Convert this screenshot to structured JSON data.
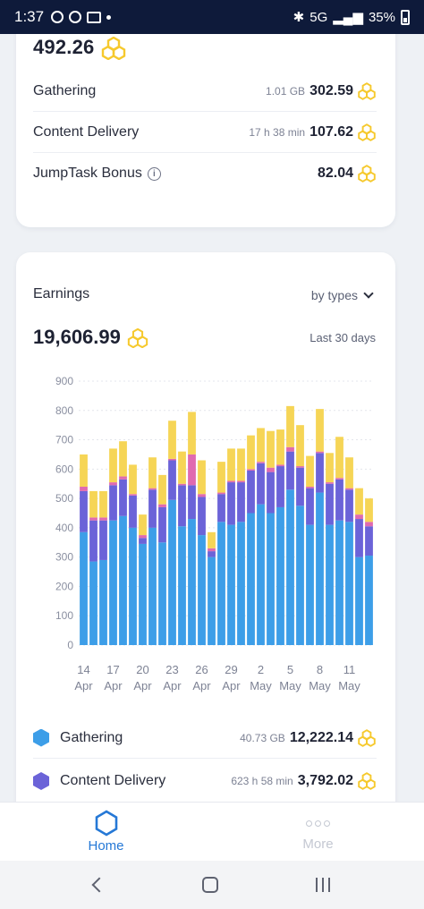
{
  "status_bar": {
    "time": "1:37",
    "network": "5G",
    "battery": "35%"
  },
  "summary": {
    "total": "492.26",
    "rows": [
      {
        "label": "Gathering",
        "meta": "1.01 GB",
        "value": "302.59"
      },
      {
        "label": "Content Delivery",
        "meta": "17 h 38 min",
        "value": "107.62"
      },
      {
        "label": "JumpTask Bonus",
        "meta": "",
        "value": "82.04"
      }
    ]
  },
  "earnings": {
    "title": "Earnings",
    "filter_label": "by types",
    "total": "19,606.99",
    "period": "Last 30 days"
  },
  "chart_data": {
    "type": "bar",
    "stacked": true,
    "ylim": [
      0,
      900
    ],
    "yticks": [
      0,
      100,
      200,
      300,
      400,
      500,
      600,
      700,
      800,
      900
    ],
    "grid": true,
    "categories": [
      "14 Apr",
      "15 Apr",
      "16 Apr",
      "17 Apr",
      "18 Apr",
      "19 Apr",
      "20 Apr",
      "21 Apr",
      "22 Apr",
      "23 Apr",
      "24 Apr",
      "25 Apr",
      "26 Apr",
      "27 Apr",
      "28 Apr",
      "29 Apr",
      "30 Apr",
      "1 May",
      "2 May",
      "3 May",
      "4 May",
      "5 May",
      "6 May",
      "7 May",
      "8 May",
      "9 May",
      "10 May",
      "11 May",
      "12 May",
      "13 May"
    ],
    "xtick_labels": [
      {
        "day": "14",
        "month": "Apr",
        "index": 0
      },
      {
        "day": "17",
        "month": "Apr",
        "index": 3
      },
      {
        "day": "20",
        "month": "Apr",
        "index": 6
      },
      {
        "day": "23",
        "month": "Apr",
        "index": 9
      },
      {
        "day": "26",
        "month": "Apr",
        "index": 12
      },
      {
        "day": "29",
        "month": "Apr",
        "index": 15
      },
      {
        "day": "2",
        "month": "May",
        "index": 18
      },
      {
        "day": "5",
        "month": "May",
        "index": 21
      },
      {
        "day": "8",
        "month": "May",
        "index": 24
      },
      {
        "day": "11",
        "month": "May",
        "index": 27
      }
    ],
    "series": [
      {
        "color": "#3d9ee8",
        "values": [
          385,
          285,
          290,
          425,
          440,
          400,
          345,
          400,
          350,
          495,
          405,
          430,
          375,
          300,
          420,
          410,
          420,
          450,
          480,
          450,
          470,
          530,
          475,
          410,
          520,
          410,
          425,
          420,
          300,
          305
        ]
      },
      {
        "color": "#6b63d8",
        "values": [
          140,
          140,
          135,
          120,
          125,
          110,
          20,
          130,
          120,
          135,
          140,
          115,
          130,
          20,
          95,
          145,
          135,
          145,
          140,
          140,
          140,
          130,
          130,
          125,
          135,
          140,
          140,
          110,
          130,
          100
        ]
      },
      {
        "color": "#e06ab0",
        "values": [
          15,
          10,
          10,
          10,
          10,
          5,
          10,
          5,
          10,
          5,
          5,
          105,
          10,
          10,
          5,
          5,
          5,
          5,
          5,
          15,
          5,
          15,
          5,
          5,
          5,
          5,
          5,
          5,
          15,
          15
        ]
      },
      {
        "color": "#f6d556",
        "values": [
          110,
          90,
          90,
          115,
          120,
          100,
          70,
          105,
          100,
          130,
          110,
          145,
          115,
          55,
          105,
          110,
          110,
          115,
          115,
          125,
          120,
          140,
          140,
          105,
          145,
          100,
          140,
          105,
          90,
          80
        ]
      }
    ]
  },
  "legend": [
    {
      "label": "Gathering",
      "meta": "40.73 GB",
      "value": "12,222.14",
      "color": "#3d9ee8"
    },
    {
      "label": "Content Delivery",
      "meta": "623 h 58 min",
      "value": "3,792.02",
      "color": "#6b63d8"
    }
  ],
  "bottom_nav": {
    "home_label": "Home",
    "more_label": "More"
  }
}
